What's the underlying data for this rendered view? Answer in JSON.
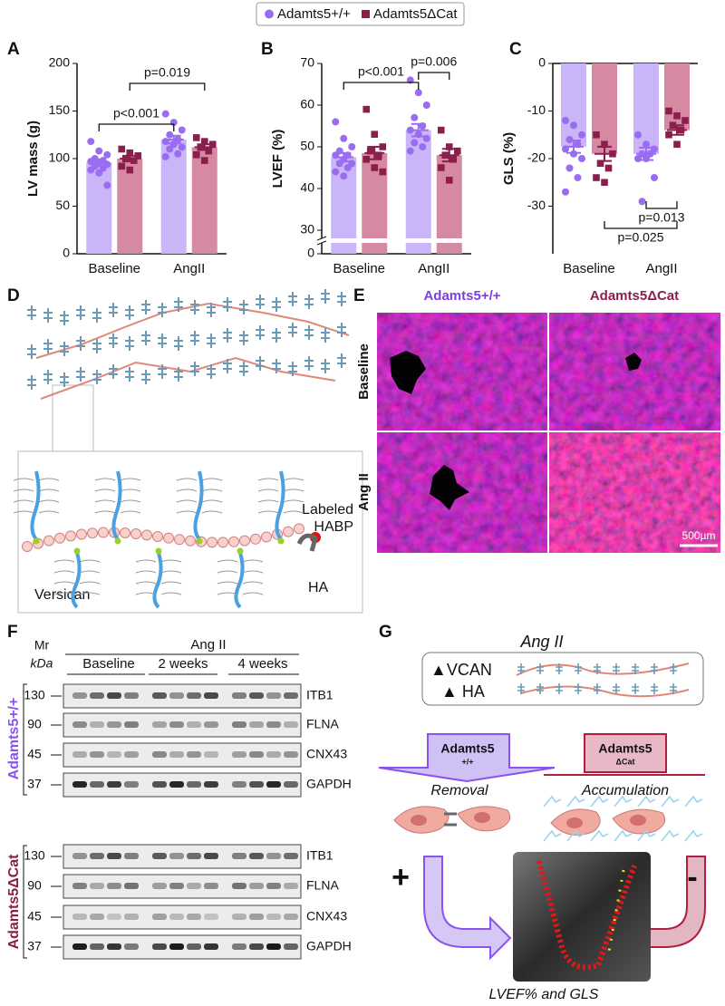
{
  "chart_data": [
    {
      "type": "bar",
      "ylabel": "LV mass (g)",
      "categories": [
        "Baseline",
        "AngII"
      ],
      "series": [
        {
          "name": "Adamts5+/+",
          "color": "#9a6cf2",
          "bar_color": "#c9b5f7",
          "marker": "circle",
          "values": [
            96,
            120
          ],
          "errors": [
            3,
            4
          ],
          "points": [
            [
              118,
              108,
              104,
              100,
              98,
              97,
              95,
              94,
              92,
              90,
              88,
              85,
              72
            ],
            [
              147,
              138,
              130,
              125,
              120,
              118,
              115,
              112,
              110,
              105,
              102
            ]
          ]
        },
        {
          "name": "Adamts5ΔCat",
          "color": "#8b1e4c",
          "bar_color": "#d58aa2",
          "marker": "square",
          "values": [
            100,
            112
          ],
          "errors": [
            3,
            3
          ],
          "points": [
            [
              110,
              106,
              103,
              100,
              98,
              92,
              88
            ],
            [
              122,
              118,
              115,
              112,
              108,
              104,
              98
            ]
          ]
        }
      ],
      "ylim": [
        0,
        200
      ],
      "yticks": [
        0,
        50,
        100,
        150,
        200
      ],
      "annotations": [
        "p<0.001",
        "p=0.019"
      ]
    },
    {
      "type": "bar",
      "ylabel": "LVEF (%)",
      "categories": [
        "Baseline",
        "AngII"
      ],
      "axis_break": true,
      "series": [
        {
          "name": "Adamts5+/+",
          "color": "#9a6cf2",
          "bar_color": "#c9b5f7",
          "marker": "circle",
          "values": [
            47.5,
            54
          ],
          "errors": [
            1,
            1.5
          ],
          "points": [
            [
              56,
              52,
              50,
              49,
              48,
              48,
              47,
              46,
              46,
              45,
              44,
              43
            ],
            [
              66,
              63,
              60,
              57,
              55,
              54,
              53,
              52,
              51,
              50,
              49
            ]
          ]
        },
        {
          "name": "Adamts5ΔCat",
          "color": "#8b1e4c",
          "bar_color": "#d58aa2",
          "marker": "square",
          "values": [
            48.5,
            48
          ],
          "errors": [
            1.5,
            1.5
          ],
          "points": [
            [
              59,
              53,
              50,
              49,
              48,
              47,
              45,
              44
            ],
            [
              54,
              50,
              49,
              48,
              47,
              45,
              42
            ]
          ]
        }
      ],
      "ylim": [
        0,
        70
      ],
      "yticks": [
        0,
        30,
        40,
        50,
        60,
        70
      ],
      "annotations": [
        "p<0.001",
        "p=0.006"
      ]
    },
    {
      "type": "bar",
      "ylabel": "GLS (%)",
      "categories": [
        "Baseline",
        "AngII"
      ],
      "series": [
        {
          "name": "Adamts5+/+",
          "color": "#9a6cf2",
          "bar_color": "#c9b5f7",
          "marker": "circle",
          "values": [
            -17.5,
            -19
          ],
          "errors": [
            1.3,
            1.3
          ],
          "points": [
            [
              -12,
              -13,
              -15,
              -16,
              -17,
              -18,
              -19,
              -20,
              -22,
              -24,
              -27
            ],
            [
              -15,
              -17,
              -18,
              -19,
              -19,
              -20,
              -20,
              -24,
              -29
            ]
          ]
        },
        {
          "name": "Adamts5ΔCat",
          "color": "#8b1e4c",
          "bar_color": "#d58aa2",
          "marker": "square",
          "values": [
            -19,
            -14
          ],
          "errors": [
            1.5,
            1
          ],
          "points": [
            [
              -15,
              -17,
              -19,
              -21,
              -22,
              -24,
              -25
            ],
            [
              -10,
              -11,
              -12,
              -13,
              -14,
              -15,
              -17
            ]
          ]
        }
      ],
      "ylim": [
        -40,
        0
      ],
      "yticks": [
        0,
        -10,
        -20,
        -30
      ],
      "annotations": [
        "p=0.013",
        "p=0.025"
      ]
    }
  ],
  "panel_labels": [
    "A",
    "B",
    "C",
    "D",
    "E",
    "F",
    "G"
  ],
  "panel_d": {
    "probe": [
      "Labeled",
      "HABP"
    ],
    "versican": "Versican",
    "ha": "HA"
  },
  "panel_e": {
    "columns": [
      "Adamts5+/+",
      "Adamts5ΔCat"
    ],
    "rows": [
      "Baseline",
      "Ang II"
    ],
    "scale_bar": "500µm"
  },
  "panel_f": {
    "mr": [
      "Mr",
      "kDa"
    ],
    "treatment": "Ang II",
    "groups": [
      "Baseline",
      "2 weeks",
      "4 weeks"
    ],
    "blots": [
      {
        "genotype": "Adamts5+/+",
        "rows": [
          {
            "mr": 130,
            "protein": "ITB1"
          },
          {
            "mr": 90,
            "protein": "FLNA"
          },
          {
            "mr": 45,
            "protein": "CNX43"
          },
          {
            "mr": 37,
            "protein": "GAPDH"
          }
        ]
      },
      {
        "genotype": "Adamts5ΔCat",
        "rows": [
          {
            "mr": 130,
            "protein": "ITB1"
          },
          {
            "mr": 90,
            "protein": "FLNA"
          },
          {
            "mr": 45,
            "protein": "CNX43"
          },
          {
            "mr": 37,
            "protein": "GAPDH"
          }
        ]
      }
    ]
  },
  "panel_g": {
    "title": "Ang II",
    "markers": [
      "▲VCAN",
      "▲ HA"
    ],
    "enzymes": [
      {
        "name": "Adamts5",
        "genotype": "+/+",
        "outcome": "Removal"
      },
      {
        "name": "Adamts5",
        "genotype": "ΔCat",
        "outcome": "Accumulation"
      }
    ],
    "signs": [
      "+",
      "-"
    ],
    "readout": "LVEF% and GLS"
  }
}
